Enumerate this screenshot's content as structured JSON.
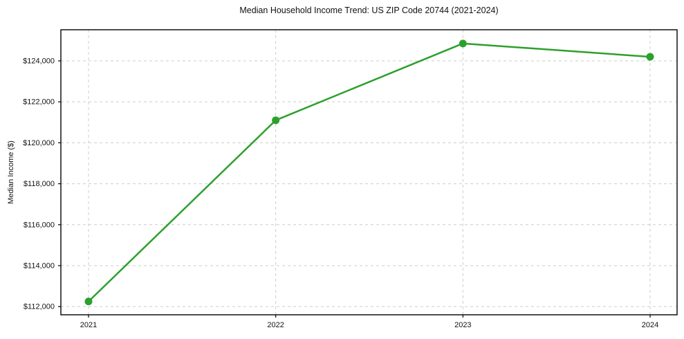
{
  "chart_data": {
    "type": "line",
    "title": "Median Household Income Trend: US ZIP Code 20744 (2021-2024)",
    "xlabel": "",
    "ylabel": "Median Income ($)",
    "categories": [
      "2021",
      "2022",
      "2023",
      "2024"
    ],
    "series": [
      {
        "name": "Median Household Income",
        "values": [
          112250,
          121100,
          124850,
          124200
        ]
      }
    ],
    "yticks": [
      112000,
      114000,
      116000,
      118000,
      120000,
      122000,
      124000
    ],
    "ytick_labels": [
      "$112,000",
      "$114,000",
      "$116,000",
      "$118,000",
      "$120,000",
      "$122,000",
      "$124,000"
    ],
    "ylim": [
      111600,
      125520
    ],
    "grid": "dashed both",
    "legend": "none",
    "colors": {
      "line": "#2ca02c",
      "marker": "#2ca02c",
      "grid": "#cccccc",
      "frame": "#000000",
      "background": "#ffffff",
      "text": "#111111"
    }
  }
}
